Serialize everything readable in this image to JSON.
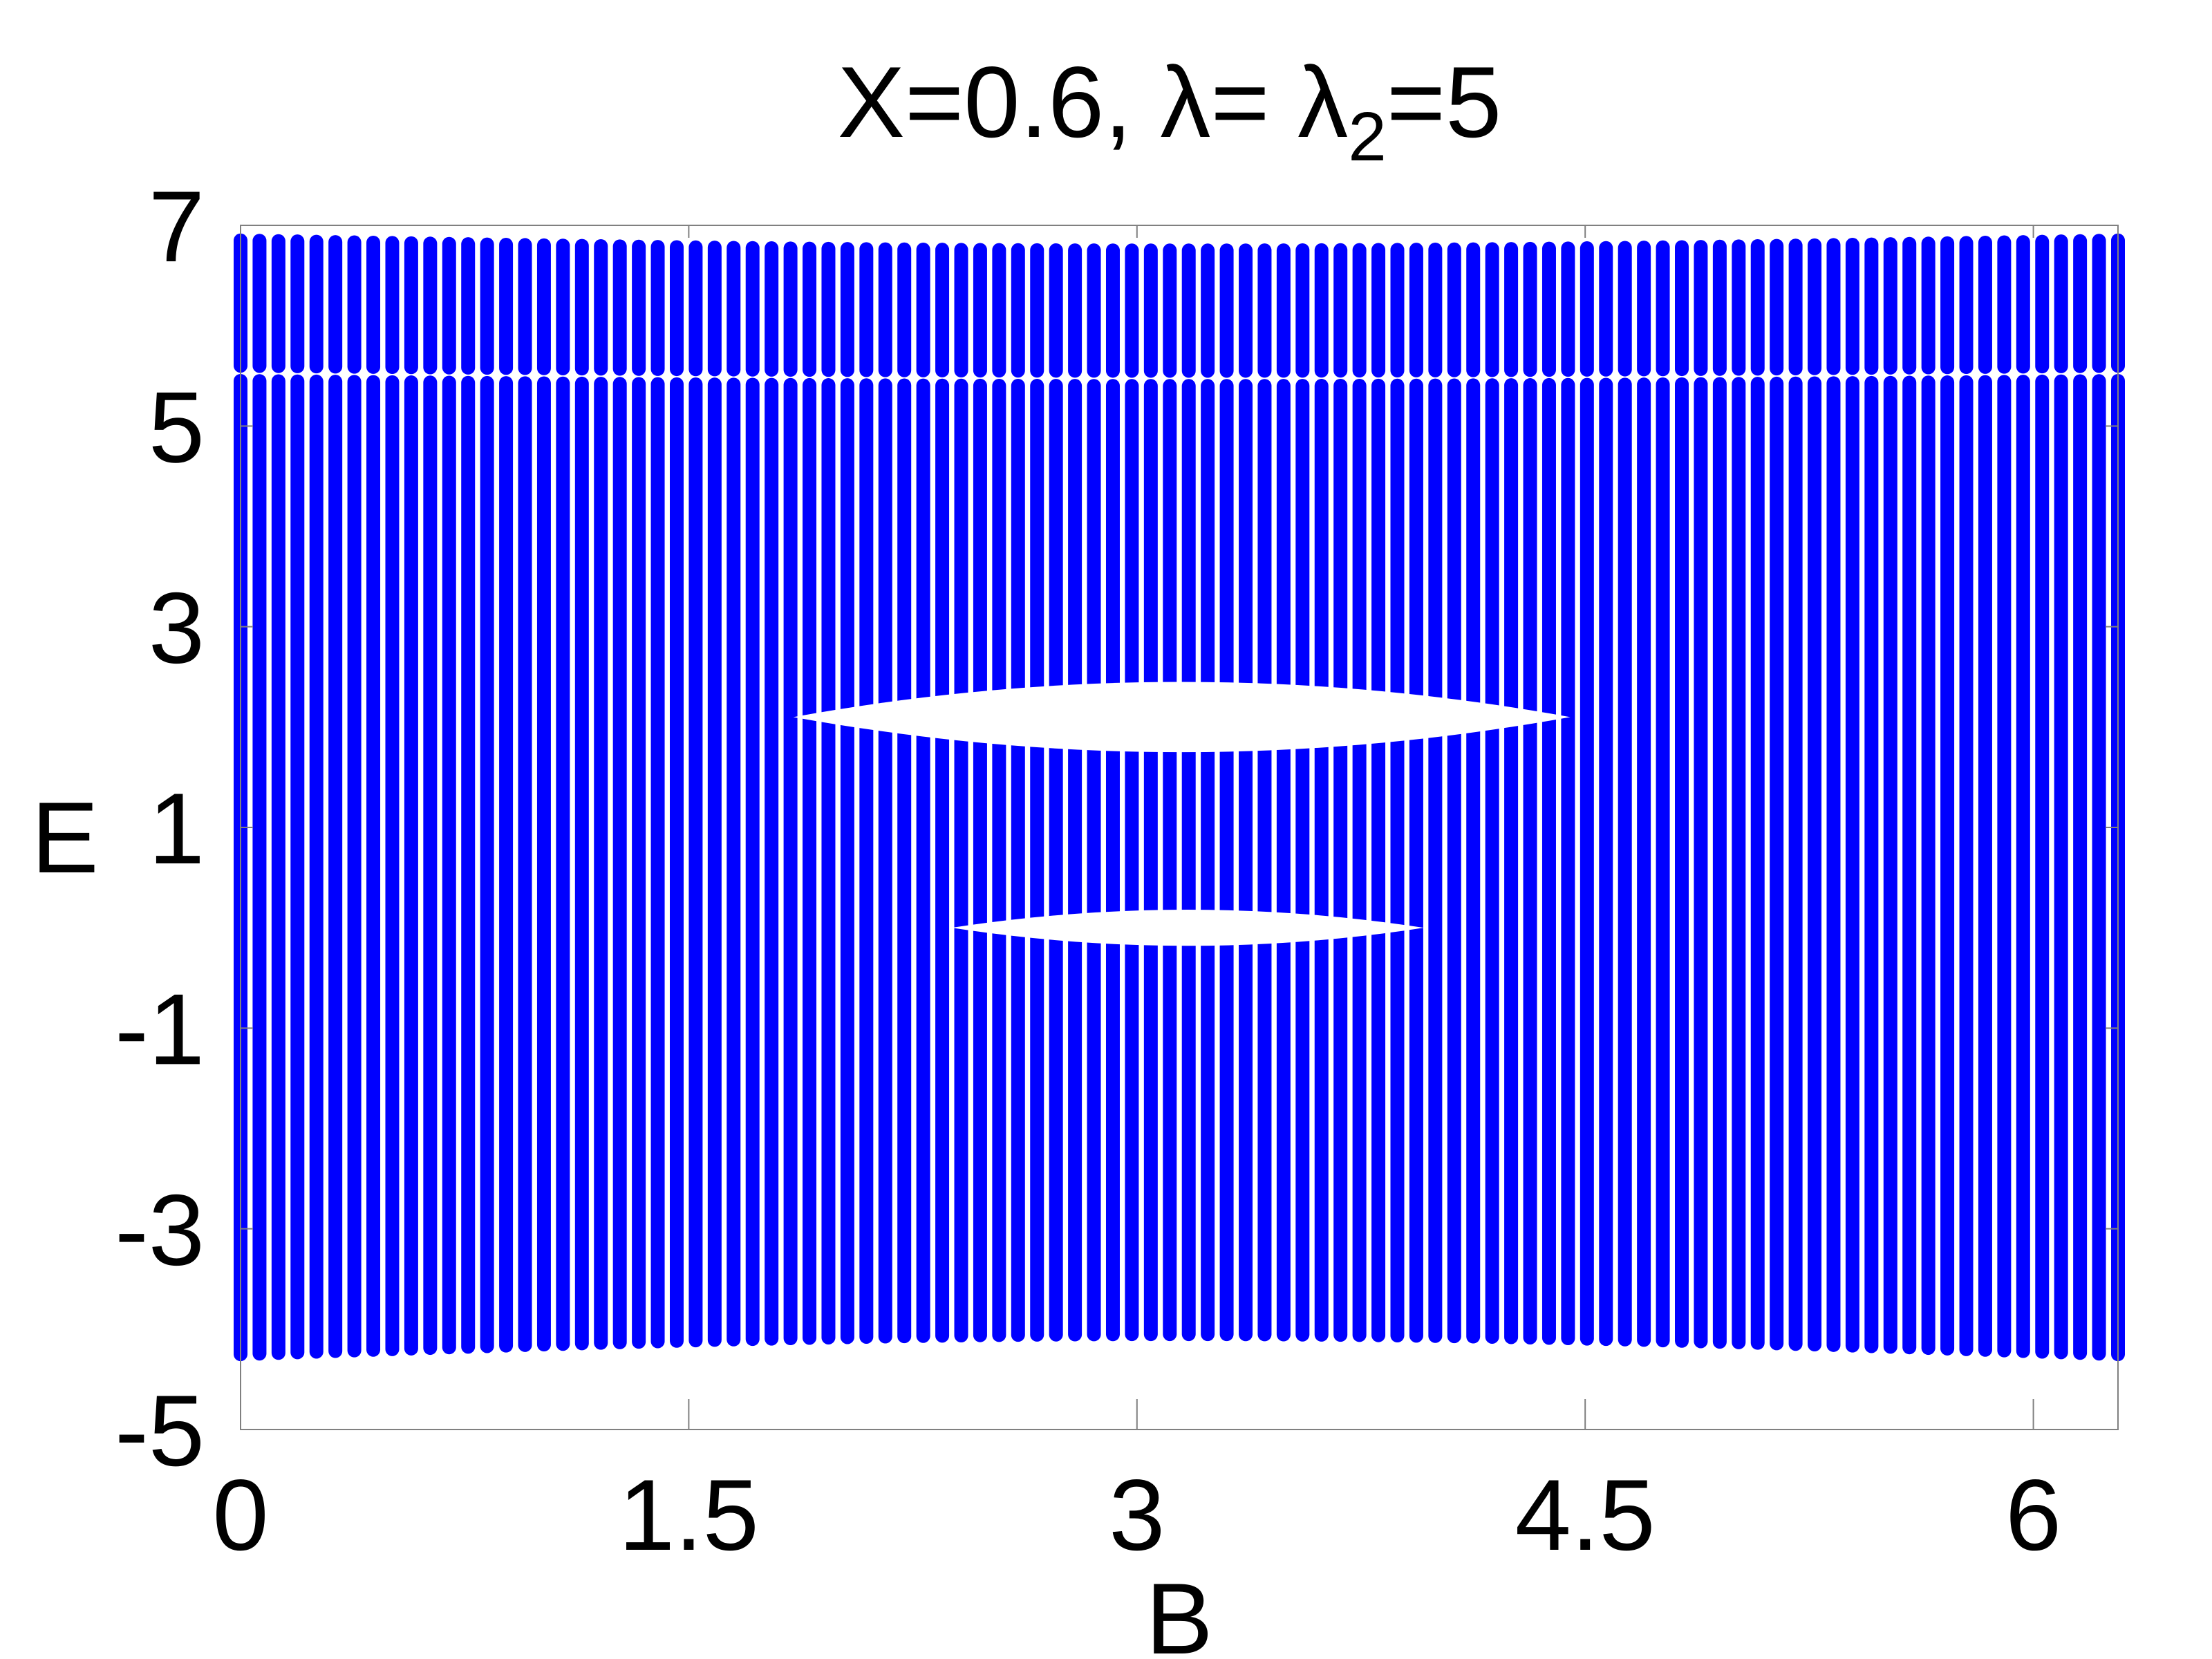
{
  "chart_data": {
    "type": "scatter",
    "title": "X=0.6, λ= λ",
    "title_subscript": "2",
    "title_suffix": "=5",
    "xlabel": "B",
    "ylabel": "E",
    "xlim": [
      0,
      6.2832
    ],
    "ylim": [
      -5,
      7
    ],
    "xticks": [
      0,
      1.5,
      3,
      4.5,
      6
    ],
    "xtick_labels": [
      "0",
      "1.5",
      "3",
      "4.5",
      "6"
    ],
    "yticks": [
      7,
      5,
      3,
      1,
      -1,
      -3,
      -5
    ],
    "ytick_labels": [
      "7",
      "5",
      "3",
      "1",
      "-1",
      "-3",
      "-5"
    ],
    "grid": false,
    "marker_color": "#0000ff",
    "series": [
      {
        "columns": 100,
        "x_range": [
          0,
          6.2832
        ],
        "bands": [
          {
            "at_edge": [
              -4.25,
              5.45
            ],
            "at_center": [
              -4.05,
              5.4
            ]
          },
          {
            "at_edge": [
              5.6,
              6.85
            ],
            "at_center": [
              5.55,
              6.75
            ]
          }
        ],
        "gaps": [
          {
            "x_range": [
              1.85,
              4.45
            ],
            "y_center": 2.1,
            "half_height": 0.35
          },
          {
            "x_range": [
              2.38,
              3.96
            ],
            "y_center": 0.0,
            "half_height": 0.18
          }
        ]
      }
    ]
  }
}
